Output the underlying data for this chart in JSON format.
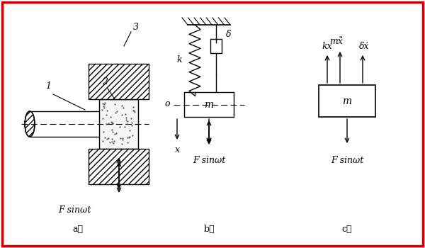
{
  "bg_color": "#ffffff",
  "border_color": "#cc0000",
  "line_color": "#000000",
  "hatch_color": "#000000",
  "label_a": "a）",
  "label_b": "b）",
  "label_c": "c）",
  "F_label": "F sinωt",
  "k_label": "k",
  "delta_label": "δ",
  "m_label": "m",
  "o_label": "o",
  "x_label": "x",
  "kx_label": "kx",
  "dx_label": "δẋ",
  "mx_label": "mẋ̈",
  "label_1": "1",
  "label_2": "2",
  "label_3": "3"
}
